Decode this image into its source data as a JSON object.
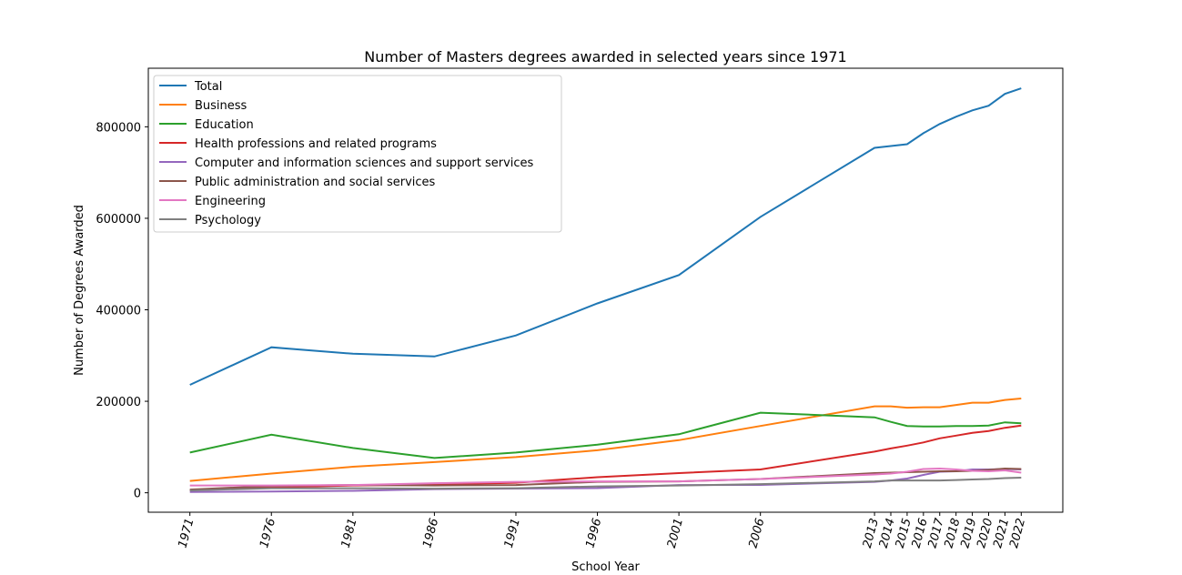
{
  "chart_data": {
    "type": "line",
    "title": "Number of Masters degrees awarded in selected years since 1971",
    "xlabel": "School Year",
    "ylabel": "Number of Degrees Awarded",
    "x": [
      1971,
      1976,
      1981,
      1986,
      1991,
      1996,
      2001,
      2006,
      2013,
      2014,
      2015,
      2016,
      2017,
      2018,
      2019,
      2020,
      2021,
      2022
    ],
    "xlim": [
      1968.45,
      2024.55
    ],
    "ylim": [
      -42500,
      928000
    ],
    "yticks": [
      0,
      200000,
      400000,
      600000,
      800000
    ],
    "grid": false,
    "legend_placement": "top-left",
    "series": [
      {
        "name": "Total",
        "color": "#1f77b4",
        "values": [
          236000,
          318000,
          304000,
          298000,
          344000,
          414000,
          476000,
          603000,
          754000,
          758000,
          762000,
          786000,
          806000,
          822000,
          836000,
          846000,
          872000,
          884000
        ]
      },
      {
        "name": "Business",
        "color": "#ff7f0e",
        "values": [
          26000,
          42000,
          57000,
          67000,
          78000,
          93000,
          115000,
          146000,
          189000,
          189000,
          186000,
          187000,
          187000,
          192000,
          197000,
          197000,
          203000,
          206000
        ]
      },
      {
        "name": "Education",
        "color": "#2ca02c",
        "values": [
          88000,
          127000,
          98000,
          76000,
          88000,
          105000,
          128000,
          175000,
          165000,
          155000,
          146000,
          145000,
          145000,
          146000,
          146000,
          147000,
          154000,
          152000
        ]
      },
      {
        "name": "Health professions and related programs",
        "color": "#d62728",
        "values": [
          6000,
          12000,
          16000,
          18000,
          22000,
          34000,
          43000,
          51000,
          90000,
          97000,
          103000,
          110000,
          119000,
          125000,
          131000,
          135000,
          142000,
          147000
        ]
      },
      {
        "name": "Computer and information sciences and support services",
        "color": "#9467bd",
        "values": [
          1600,
          2600,
          4200,
          8100,
          9300,
          10200,
          17000,
          17100,
          24000,
          27000,
          31000,
          39000,
          46000,
          47000,
          51000,
          51000,
          52000,
          51000
        ]
      },
      {
        "name": "Public administration and social services",
        "color": "#8c564b",
        "values": [
          7000,
          15000,
          17000,
          16000,
          17000,
          24000,
          25000,
          30000,
          43000,
          44000,
          45000,
          46000,
          47000,
          47000,
          48000,
          50000,
          53000,
          52000
        ]
      },
      {
        "name": "Engineering",
        "color": "#e377c2",
        "values": [
          16000,
          16000,
          17000,
          21000,
          24000,
          25000,
          25000,
          30000,
          40000,
          42000,
          46000,
          52000,
          53000,
          51000,
          48000,
          47000,
          49000,
          44000
        ]
      },
      {
        "name": "Psychology",
        "color": "#7f7f7f",
        "values": [
          5000,
          10000,
          10000,
          9000,
          10000,
          14000,
          16000,
          19000,
          25000,
          27000,
          27000,
          27000,
          27000,
          28000,
          29000,
          30000,
          32000,
          33000
        ]
      }
    ]
  }
}
